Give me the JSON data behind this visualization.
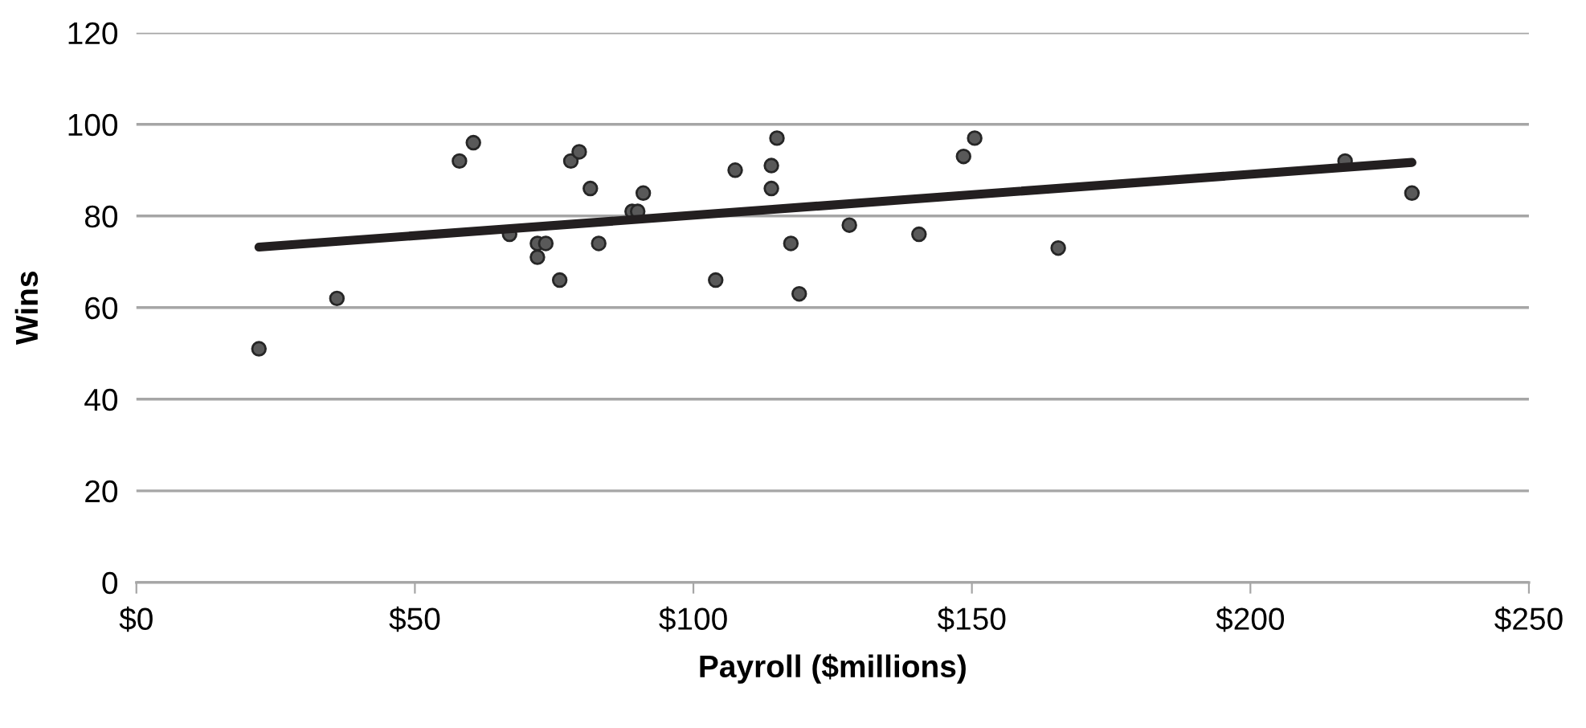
{
  "chart_data": {
    "type": "scatter",
    "xlabel": "Payroll ($millions)",
    "ylabel": "Wins",
    "xlim": [
      0,
      250
    ],
    "xticks": [
      {
        "value": 0,
        "label": "$0"
      },
      {
        "value": 50,
        "label": "$50"
      },
      {
        "value": 100,
        "label": "$100"
      },
      {
        "value": 150,
        "label": "$150"
      },
      {
        "value": 200,
        "label": "$200"
      },
      {
        "value": 250,
        "label": "$250"
      }
    ],
    "ylim": [
      0,
      120
    ],
    "yticks": [
      0,
      20,
      40,
      60,
      80,
      100,
      120
    ],
    "grid": "y",
    "series": [
      {
        "marker": "circle",
        "color": "#595959",
        "x": [
          22,
          36,
          58,
          60.5,
          67,
          72,
          72,
          73.5,
          76,
          78,
          79.5,
          81.5,
          83,
          89,
          90,
          91,
          104,
          107.5,
          114,
          114,
          115,
          117.5,
          119,
          128,
          140.5,
          148.5,
          150.5,
          165.5,
          217,
          229
        ],
        "values": [
          51,
          62,
          92,
          96,
          76,
          71,
          74,
          74,
          66,
          92,
          94,
          86,
          74,
          81,
          81,
          85,
          66,
          90,
          91,
          86,
          97,
          74,
          63,
          78,
          76,
          93,
          97,
          73,
          92,
          85
        ]
      },
      {
        "type": "line",
        "color": "#231f20",
        "line_style": "solid",
        "x": [
          22,
          229
        ],
        "values": [
          73.2,
          91.7
        ]
      }
    ]
  }
}
